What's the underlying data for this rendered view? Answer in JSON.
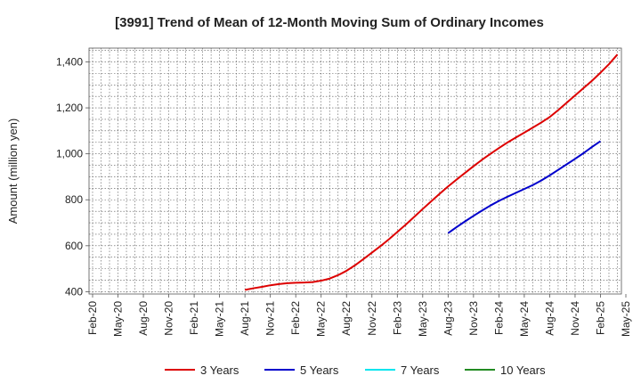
{
  "chart_data": {
    "type": "line",
    "title": "[3991]  Trend of Mean of 12-Month Moving Sum of Ordinary Incomes",
    "xlabel": "",
    "ylabel": "Amount (million yen)",
    "ylim": [
      390,
      1460
    ],
    "yticks": [
      400,
      600,
      800,
      1000,
      1200,
      1400
    ],
    "ytick_labels": [
      "400",
      "600",
      "800",
      "1,000",
      "1,200",
      "1,400"
    ],
    "x_tick_labels": [
      "Feb-20",
      "May-20",
      "Aug-20",
      "Nov-20",
      "Feb-21",
      "May-21",
      "Aug-21",
      "Nov-21",
      "Feb-22",
      "May-22",
      "Aug-22",
      "Nov-22",
      "Feb-23",
      "May-23",
      "Aug-23",
      "Nov-23",
      "Feb-24",
      "May-24",
      "Aug-24",
      "Nov-24",
      "Feb-25",
      "May-25"
    ],
    "grid": true,
    "legend_position": "bottom",
    "series": [
      {
        "name": "3 Years",
        "color": "#dd0000",
        "start_index": 18,
        "values": [
          408,
          415,
          421,
          428,
          433,
          437,
          439,
          440,
          442,
          448,
          457,
          472,
          491,
          515,
          542,
          570,
          598,
          628,
          660,
          692,
          726,
          760,
          793,
          826,
          858,
          888,
          917,
          946,
          974,
          1000,
          1025,
          1049,
          1071,
          1092,
          1114,
          1136,
          1160,
          1190,
          1222,
          1254,
          1286,
          1318,
          1353,
          1390,
          1432
        ]
      },
      {
        "name": "5 Years",
        "color": "#0000cc",
        "start_index": 42,
        "values": [
          655,
          681,
          706,
          730,
          753,
          775,
          795,
          813,
          830,
          847,
          864,
          884,
          906,
          930,
          954,
          978,
          1003,
          1030,
          1055
        ]
      },
      {
        "name": "7 Years",
        "color": "#00e5ee",
        "start_index": 0,
        "values": []
      },
      {
        "name": "10 Years",
        "color": "#228b22",
        "start_index": 0,
        "values": []
      }
    ]
  }
}
